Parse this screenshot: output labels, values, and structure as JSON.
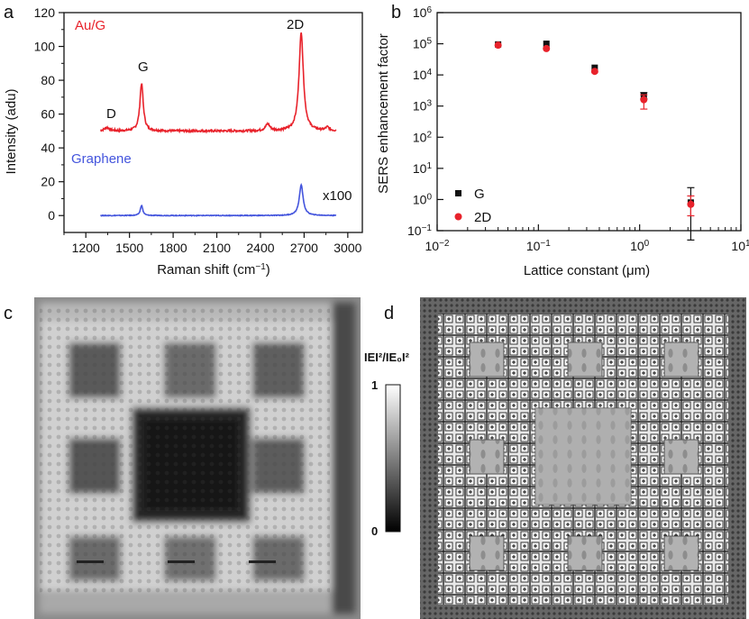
{
  "panels": {
    "a": "a",
    "b": "b",
    "c": "c",
    "d": "d"
  },
  "chart_data": [
    {
      "type": "line",
      "panel": "a",
      "xlabel": "Raman shift (cm",
      "xlabel_sup": "−1",
      "xlabel_end": ")",
      "ylabel": "Intensity (adu)",
      "xlim": [
        1050,
        3100
      ],
      "ylim": [
        -10,
        120
      ],
      "xticks": [
        1200,
        1500,
        1800,
        2100,
        2400,
        2700,
        3000
      ],
      "yticks": [
        0,
        20,
        40,
        60,
        80,
        100,
        120
      ],
      "series": [
        {
          "name": "Au/G",
          "color": "#e8222b",
          "baseline": 50,
          "x_range": [
            1300,
            2920
          ],
          "peaks": [
            {
              "label": "D",
              "x": 1345,
              "height": 2,
              "width": 20
            },
            {
              "label": "G",
              "x": 1583,
              "height": 28,
              "width": 14
            },
            {
              "label": "",
              "x": 2450,
              "height": 4,
              "width": 18
            },
            {
              "label": "2D",
              "x": 2680,
              "height": 58,
              "width": 18
            },
            {
              "label": "",
              "x": 2860,
              "height": 2,
              "width": 15
            }
          ]
        },
        {
          "name": "Graphene",
          "color": "#4455dd",
          "baseline": 0,
          "x_range": [
            1300,
            2920
          ],
          "peaks": [
            {
              "label": "",
              "x": 1583,
              "height": 6,
              "width": 10
            },
            {
              "label": "",
              "x": 2680,
              "height": 18,
              "width": 16
            }
          ]
        }
      ],
      "annotations": [
        {
          "text": "Au/G",
          "kind": "series-label"
        },
        {
          "text": "Graphene",
          "kind": "series-label"
        },
        {
          "text": "D",
          "kind": "peak-label"
        },
        {
          "text": "G",
          "kind": "peak-label"
        },
        {
          "text": "2D",
          "kind": "peak-label"
        },
        {
          "text": "x100",
          "kind": "scale-label"
        }
      ]
    },
    {
      "type": "scatter",
      "panel": "b",
      "xscale": "log",
      "yscale": "log",
      "xlabel": "Lattice constant (μm)",
      "ylabel": "SERS enhancement factor",
      "xlim_exp": [
        -2,
        1
      ],
      "ylim_exp": [
        -1,
        6
      ],
      "xtick_exponents": [
        -2,
        -1,
        0,
        1
      ],
      "ytick_exponents": [
        -1,
        0,
        1,
        2,
        3,
        4,
        5,
        6
      ],
      "tick_base": "10",
      "series": [
        {
          "name": "G",
          "marker": "square",
          "color": "#111111",
          "points": [
            {
              "x": 0.04,
              "y": 95000,
              "err_low": 0,
              "err_high": 0
            },
            {
              "x": 0.12,
              "y": 100000,
              "err_low": 0,
              "err_high": 0
            },
            {
              "x": 0.36,
              "y": 17000,
              "err_low": 0,
              "err_high": 0
            },
            {
              "x": 1.1,
              "y": 2200,
              "err_low": 500,
              "err_high": 500
            },
            {
              "x": 3.2,
              "y": 0.8,
              "err_low": 0.75,
              "err_high": 1.6
            }
          ]
        },
        {
          "name": "2D",
          "marker": "circle",
          "color": "#e8222b",
          "points": [
            {
              "x": 0.04,
              "y": 90000,
              "err_low": 0,
              "err_high": 0
            },
            {
              "x": 0.12,
              "y": 70000,
              "err_low": 0,
              "err_high": 0
            },
            {
              "x": 0.36,
              "y": 13000,
              "err_low": 0,
              "err_high": 0
            },
            {
              "x": 1.1,
              "y": 1600,
              "err_low": 800,
              "err_high": 700
            },
            {
              "x": 3.2,
              "y": 0.7,
              "err_low": 0.4,
              "err_high": 0.6
            }
          ]
        }
      ],
      "legend": [
        "G",
        "2D"
      ],
      "legend_position": "bottom-left"
    }
  ],
  "colorbar": {
    "label": "IEI²/IE₀I²",
    "max_label": "1",
    "min_label": "0"
  }
}
